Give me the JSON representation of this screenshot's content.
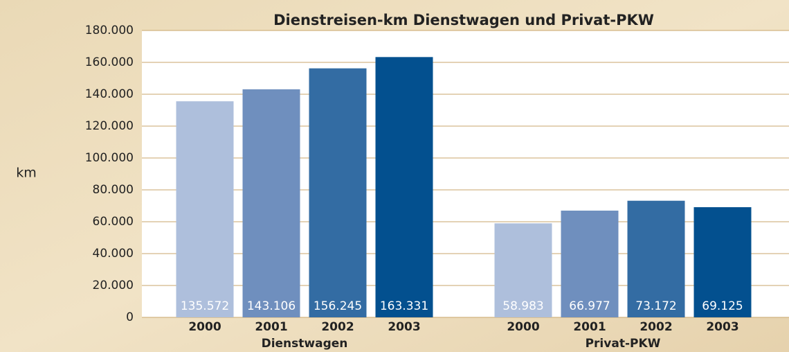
{
  "chart_data": {
    "type": "bar",
    "title": "Dienstreisen-km Dienstwagen und Privat-PKW",
    "y_label": "km",
    "categories": [
      "Dienstwagen",
      "Privat-PKW"
    ],
    "series": [
      {
        "name": "2000",
        "color": "#aebfdc",
        "values": [
          135572,
          58983
        ],
        "value_labels": [
          "135.572",
          "58.983"
        ]
      },
      {
        "name": "2001",
        "color": "#6f8fbe",
        "values": [
          143106,
          66977
        ],
        "value_labels": [
          "143.106",
          "66.977"
        ]
      },
      {
        "name": "2002",
        "color": "#336ca3",
        "values": [
          156245,
          73172
        ],
        "value_labels": [
          "156.245",
          "73.172"
        ]
      },
      {
        "name": "2003",
        "color": "#03508f",
        "values": [
          163331,
          69125
        ],
        "value_labels": [
          "163.331",
          "69.125"
        ]
      }
    ],
    "ylim": [
      0,
      180000
    ],
    "yticks": [
      0,
      {
        "value": 20000,
        "label": "20.000"
      },
      {
        "value": 40000,
        "label": "40.000"
      },
      {
        "value": 60000,
        "label": "60.000"
      },
      {
        "value": 80000,
        "label": "80.000"
      },
      {
        "value": 100000,
        "label": "100.000"
      },
      {
        "value": 120000,
        "label": "120.000"
      },
      {
        "value": 140000,
        "label": "140.000"
      },
      {
        "value": 160000,
        "label": "160.000"
      },
      {
        "value": 180000,
        "label": "180.000"
      }
    ],
    "grid": true
  }
}
